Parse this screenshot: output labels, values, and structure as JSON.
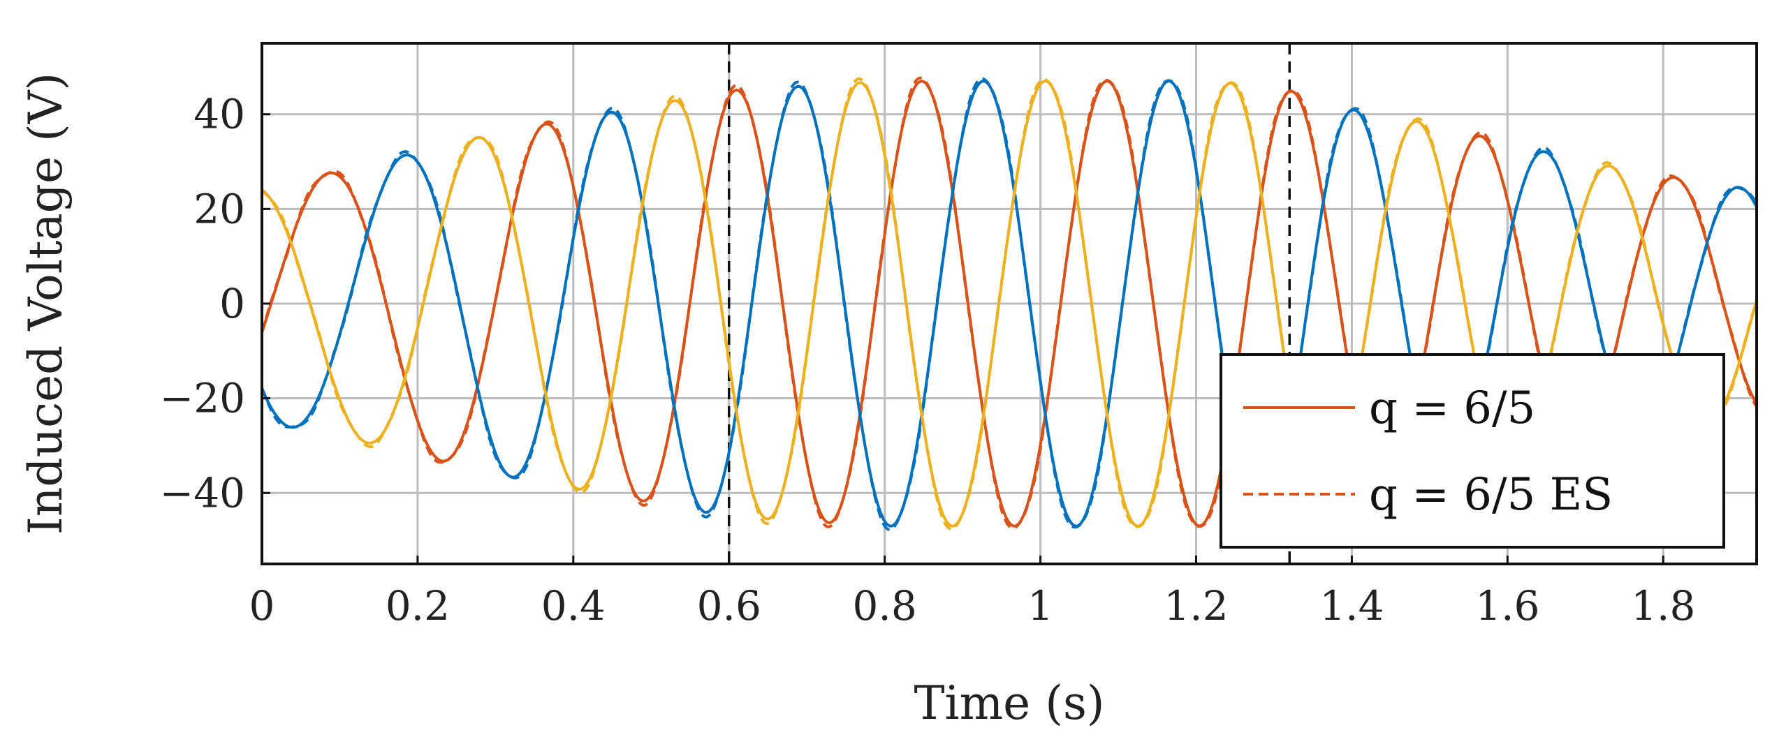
{
  "chart_data": {
    "type": "line",
    "title": "",
    "xlabel": "Time (s)",
    "ylabel": "Induced Voltage (V)",
    "xlim": [
      0,
      1.92
    ],
    "ylim": [
      -55,
      55
    ],
    "xticks": [
      0,
      0.2,
      0.4,
      0.6,
      0.8,
      1,
      1.2,
      1.4,
      1.6,
      1.8
    ],
    "xtick_labels": [
      "0",
      "0.2",
      "0.4",
      "0.6",
      "0.8",
      "1",
      "1.2",
      "1.4",
      "1.6",
      "1.8"
    ],
    "yticks": [
      -40,
      -20,
      0,
      20,
      40
    ],
    "ytick_labels": [
      "−40",
      "−20",
      "0",
      "20",
      "40"
    ],
    "grid": true,
    "vlines": [
      0.6,
      1.32
    ],
    "legend": {
      "placement": "bottom-right",
      "entries": [
        {
          "label": "q = 6/5",
          "style": "solid",
          "color": "#D95319"
        },
        {
          "label": "q = 6/5 ES",
          "style": "dashed",
          "color": "#D95319"
        }
      ]
    },
    "phase_colors": [
      "#D95319",
      "#0072BD",
      "#EDB120"
    ],
    "envelope": {
      "t": [
        0,
        0.1,
        0.2,
        0.3,
        0.4,
        0.5,
        0.6,
        0.7,
        0.8,
        0.9,
        1.0,
        1.1,
        1.2,
        1.3,
        1.4,
        1.5,
        1.6,
        1.7,
        1.8,
        1.92
      ],
      "amplitude": [
        25,
        28,
        32,
        36,
        39,
        42,
        45,
        46,
        47,
        47,
        47,
        47,
        47,
        46,
        41,
        38,
        34,
        30,
        27,
        24
      ]
    },
    "frequency_profile": {
      "t": [
        0,
        0.2,
        0.4,
        0.6,
        1.32,
        1.5,
        1.7,
        1.92
      ],
      "hz": [
        3.3,
        3.5,
        4.0,
        4.2,
        4.2,
        4.1,
        4.0,
        4.0
      ]
    },
    "initial_phase_deg": -14,
    "series": [
      {
        "name": "",
        "color": "#D95319",
        "phase_offset_deg": 0
      },
      {
        "name": "",
        "color": "#0072BD",
        "phase_offset_deg": 120
      },
      {
        "name": "",
        "color": "#EDB120",
        "phase_offset_deg": 240
      }
    ]
  }
}
